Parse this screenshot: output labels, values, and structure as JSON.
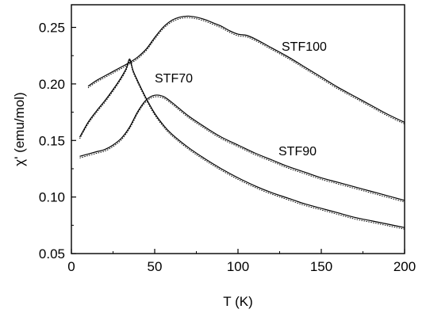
{
  "chart_data": {
    "type": "line",
    "title": "",
    "xlabel": "T (K)",
    "ylabel": "χ' (emu/mol)",
    "xlim": [
      0,
      200
    ],
    "ylim": [
      0.05,
      0.27
    ],
    "x_ticks": [
      0,
      50,
      100,
      150,
      200
    ],
    "x_tick_labels": [
      "0",
      "50",
      "100",
      "150",
      "200"
    ],
    "y_ticks": [
      0.05,
      0.1,
      0.15,
      0.2,
      0.25
    ],
    "y_tick_labels": [
      "0.05",
      "0.10",
      "0.15",
      "0.20",
      "0.25"
    ],
    "grid": false,
    "series": [
      {
        "name": "STF100",
        "x": [
          10,
          15,
          20,
          25,
          30,
          35,
          40,
          45,
          50,
          55,
          60,
          65,
          70,
          75,
          80,
          85,
          90,
          95,
          100,
          105,
          110,
          120,
          130,
          140,
          150,
          160,
          170,
          180,
          190,
          200
        ],
        "y": [
          0.198,
          0.203,
          0.207,
          0.211,
          0.215,
          0.219,
          0.224,
          0.231,
          0.241,
          0.25,
          0.256,
          0.259,
          0.26,
          0.259,
          0.257,
          0.254,
          0.251,
          0.247,
          0.244,
          0.243,
          0.24,
          0.232,
          0.224,
          0.215,
          0.206,
          0.197,
          0.189,
          0.181,
          0.173,
          0.166
        ]
      },
      {
        "name": "STF70",
        "x": [
          5,
          10,
          15,
          20,
          25,
          30,
          33,
          35,
          37,
          40,
          45,
          50,
          55,
          60,
          70,
          80,
          90,
          100,
          110,
          120,
          130,
          140,
          150,
          160,
          170,
          180,
          190,
          200
        ],
        "y": [
          0.153,
          0.166,
          0.176,
          0.185,
          0.195,
          0.206,
          0.214,
          0.222,
          0.212,
          0.202,
          0.187,
          0.174,
          0.164,
          0.156,
          0.144,
          0.134,
          0.125,
          0.117,
          0.11,
          0.104,
          0.099,
          0.094,
          0.09,
          0.086,
          0.082,
          0.079,
          0.076,
          0.073
        ]
      },
      {
        "name": "STF90",
        "x": [
          5,
          10,
          15,
          20,
          25,
          30,
          35,
          40,
          45,
          50,
          55,
          60,
          70,
          80,
          90,
          100,
          110,
          120,
          130,
          140,
          150,
          160,
          170,
          180,
          190,
          200
        ],
        "y": [
          0.136,
          0.138,
          0.14,
          0.142,
          0.146,
          0.152,
          0.162,
          0.176,
          0.186,
          0.19,
          0.189,
          0.184,
          0.172,
          0.162,
          0.153,
          0.146,
          0.139,
          0.133,
          0.127,
          0.122,
          0.117,
          0.113,
          0.109,
          0.105,
          0.101,
          0.097
        ]
      }
    ]
  },
  "series_labels": {
    "stf100": "STF100",
    "stf70": "STF70",
    "stf90": "STF90"
  },
  "colors": {
    "line": "#000000",
    "axis": "#000000",
    "background": "#ffffff"
  }
}
